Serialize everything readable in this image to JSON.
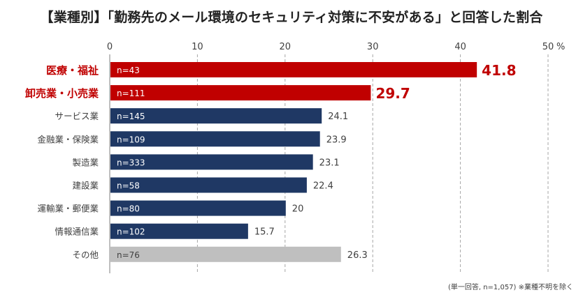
{
  "title": "【業種別】「勤務先のメール環境のセキュリティ対策に不安がある」と回答した割合",
  "note": "(単一回答, n=1,057) ※業種不明を除く",
  "unit": "%",
  "colors": {
    "highlight": "#c00000",
    "default": "#1f3864",
    "other": "#bfbfbf",
    "grid": "#a6a6a6"
  },
  "chart_data": {
    "type": "bar",
    "orientation": "horizontal",
    "categories": [
      "医療・福祉",
      "卸売業・小売業",
      "サービス業",
      "金融業・保険業",
      "製造業",
      "建設業",
      "運輸業・郵便業",
      "情報通信業",
      "その他"
    ],
    "values": [
      41.8,
      29.7,
      24.1,
      23.9,
      23.1,
      22.4,
      20,
      15.7,
      26.3
    ],
    "value_labels": [
      "41.8",
      "29.7",
      "24.1",
      "23.9",
      "23.1",
      "22.4",
      "20",
      "15.7",
      "26.3"
    ],
    "sample_sizes": [
      "n=43",
      "n=111",
      "n=145",
      "n=109",
      "n=333",
      "n=58",
      "n=80",
      "n=102",
      "n=76"
    ],
    "highlight": [
      true,
      true,
      false,
      false,
      false,
      false,
      false,
      false,
      false
    ],
    "other": [
      false,
      false,
      false,
      false,
      false,
      false,
      false,
      false,
      true
    ],
    "xlim": [
      0,
      50
    ],
    "xticks": [
      "0",
      "10",
      "20",
      "30",
      "40",
      "50"
    ],
    "grid": "vertical dashed"
  }
}
